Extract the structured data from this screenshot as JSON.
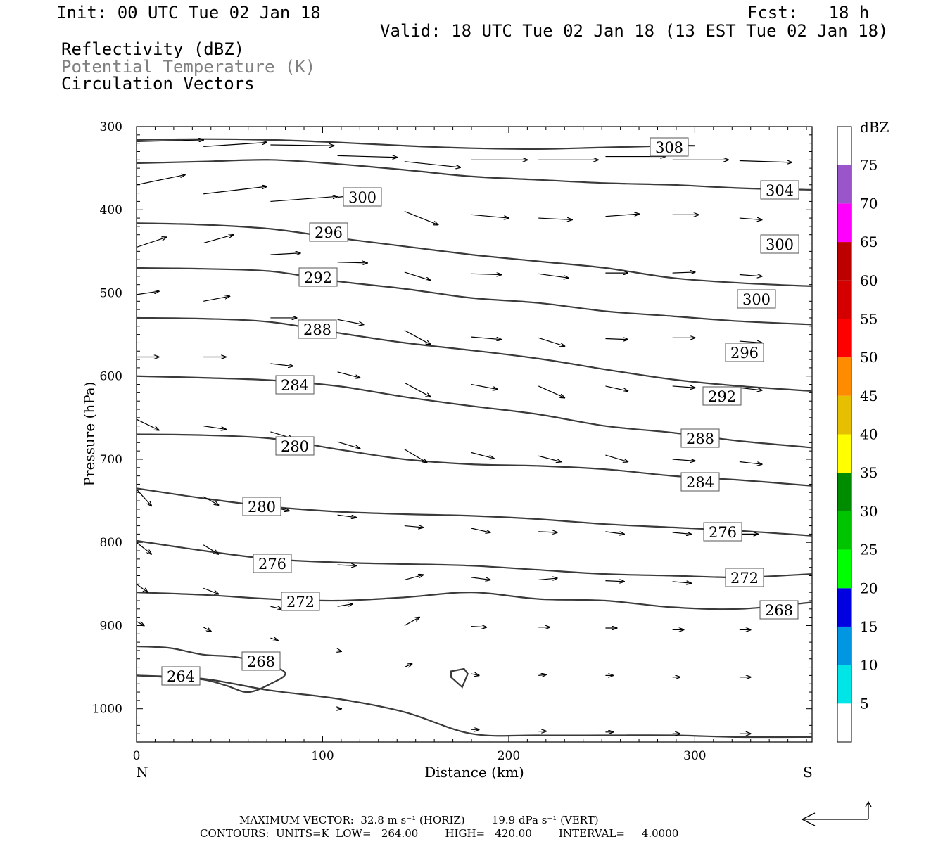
{
  "header": {
    "init": "Init: 00 UTC Tue 02 Jan 18",
    "fcst": "Fcst:   18 h",
    "valid": "Valid: 18 UTC Tue 02 Jan 18 (13 EST Tue 02 Jan 18)",
    "field1": "Reflectivity (dBZ)",
    "field2": "Potential Temperature (K)",
    "field3": "Circulation Vectors"
  },
  "footer": {
    "line1": "MAXIMUM VECTOR:  32.8 m s⁻¹ (HORIZ)        19.9 dPa s⁻¹ (VERT)",
    "line2": "CONTOURS:  UNITS=K  LOW=   264.00        HIGH=   420.00        INTERVAL=     4.0000"
  },
  "colors": {
    "contour": "#3a3a3a",
    "gray_text": "#808080"
  },
  "chart_data": {
    "type": "contour",
    "xlabel": "Distance (km)",
    "ylabel": "Pressure (hPa)",
    "xlim": [
      0,
      363
    ],
    "ylim": [
      300,
      1040
    ],
    "x_ticks": [
      0,
      100,
      200,
      300
    ],
    "y_ticks": [
      300,
      400,
      500,
      600,
      700,
      800,
      900,
      1000
    ],
    "x_end_labels": {
      "left": "N",
      "right": "S"
    },
    "colorbar": {
      "title": "dBZ",
      "labels": [
        "5",
        "10",
        "15",
        "20",
        "25",
        "30",
        "35",
        "40",
        "45",
        "50",
        "55",
        "60",
        "65",
        "70",
        "75"
      ],
      "colors": [
        "#ffffff",
        "#00e5e5",
        "#0096e1",
        "#0000e0",
        "#00ff00",
        "#00c400",
        "#008c00",
        "#ffff00",
        "#e6c000",
        "#ff8c00",
        "#ff0000",
        "#d40000",
        "#bc0000",
        "#ff00ff",
        "#9955c9",
        "#ffffff"
      ]
    },
    "contour_label_values": [
      "308",
      "304",
      "300",
      "300",
      "296",
      "300",
      "292",
      "296",
      "288",
      "292",
      "284",
      "288",
      "280",
      "284",
      "280",
      "276",
      "276",
      "272",
      "272",
      "268",
      "268",
      "264",
      "264"
    ],
    "isentropes": [
      {
        "theta": 308,
        "points": [
          [
            0,
            316
          ],
          [
            36,
            315
          ],
          [
            72,
            316
          ],
          [
            108,
            319
          ],
          [
            144,
            323
          ],
          [
            180,
            326
          ],
          [
            216,
            327
          ],
          [
            252,
            325
          ],
          [
            288,
            323
          ],
          [
            300,
            323
          ]
        ]
      },
      {
        "theta": 304,
        "points": [
          [
            0,
            344
          ],
          [
            36,
            342
          ],
          [
            72,
            340
          ],
          [
            108,
            345
          ],
          [
            144,
            352
          ],
          [
            180,
            360
          ],
          [
            216,
            364
          ],
          [
            252,
            368
          ],
          [
            288,
            370
          ],
          [
            324,
            374
          ],
          [
            363,
            376
          ]
        ]
      },
      {
        "theta": 300,
        "points": [
          [
            0,
            416
          ],
          [
            36,
            418
          ],
          [
            72,
            423
          ],
          [
            108,
            434
          ],
          [
            144,
            444
          ],
          [
            180,
            454
          ],
          [
            216,
            462
          ],
          [
            252,
            470
          ],
          [
            288,
            482
          ],
          [
            324,
            488
          ],
          [
            363,
            492
          ]
        ]
      },
      {
        "theta": 296,
        "points": [
          [
            0,
            470
          ],
          [
            36,
            471
          ],
          [
            72,
            474
          ],
          [
            108,
            486
          ],
          [
            144,
            495
          ],
          [
            180,
            506
          ],
          [
            216,
            512
          ],
          [
            252,
            522
          ],
          [
            288,
            528
          ],
          [
            324,
            534
          ],
          [
            363,
            538
          ]
        ]
      },
      {
        "theta": 292,
        "points": [
          [
            0,
            530
          ],
          [
            36,
            531
          ],
          [
            72,
            535
          ],
          [
            108,
            548
          ],
          [
            144,
            560
          ],
          [
            180,
            569
          ],
          [
            216,
            579
          ],
          [
            252,
            592
          ],
          [
            288,
            604
          ],
          [
            324,
            612
          ],
          [
            363,
            618
          ]
        ]
      },
      {
        "theta": 288,
        "points": [
          [
            0,
            600
          ],
          [
            36,
            602
          ],
          [
            72,
            605
          ],
          [
            108,
            612
          ],
          [
            144,
            625
          ],
          [
            180,
            636
          ],
          [
            216,
            646
          ],
          [
            252,
            660
          ],
          [
            288,
            668
          ],
          [
            324,
            678
          ],
          [
            363,
            686
          ]
        ]
      },
      {
        "theta": 284,
        "points": [
          [
            0,
            670
          ],
          [
            36,
            671
          ],
          [
            72,
            675
          ],
          [
            108,
            688
          ],
          [
            144,
            700
          ],
          [
            180,
            706
          ],
          [
            216,
            708
          ],
          [
            252,
            712
          ],
          [
            288,
            720
          ],
          [
            324,
            725
          ],
          [
            363,
            732
          ]
        ]
      },
      {
        "theta": 280,
        "points": [
          [
            0,
            735
          ],
          [
            36,
            747
          ],
          [
            72,
            757
          ],
          [
            108,
            763
          ],
          [
            144,
            766
          ],
          [
            180,
            768
          ],
          [
            216,
            772
          ],
          [
            252,
            778
          ],
          [
            288,
            782
          ],
          [
            324,
            786
          ],
          [
            363,
            792
          ]
        ]
      },
      {
        "theta": 276,
        "points": [
          [
            0,
            798
          ],
          [
            36,
            810
          ],
          [
            72,
            820
          ],
          [
            108,
            824
          ],
          [
            144,
            826
          ],
          [
            180,
            828
          ],
          [
            216,
            833
          ],
          [
            252,
            838
          ],
          [
            288,
            840
          ],
          [
            324,
            842
          ],
          [
            363,
            838
          ]
        ]
      },
      {
        "theta": 272,
        "points": [
          [
            0,
            860
          ],
          [
            36,
            863
          ],
          [
            72,
            868
          ],
          [
            108,
            870
          ],
          [
            144,
            866
          ],
          [
            180,
            860
          ],
          [
            216,
            868
          ],
          [
            252,
            870
          ],
          [
            288,
            878
          ],
          [
            324,
            880
          ],
          [
            363,
            872
          ]
        ]
      },
      {
        "theta": 268,
        "points": [
          [
            0,
            925
          ],
          [
            18,
            927
          ],
          [
            36,
            935
          ],
          [
            54,
            938
          ],
          [
            72,
            948
          ],
          [
            80,
            958
          ],
          [
            72,
            970
          ],
          [
            60,
            980
          ],
          [
            48,
            972
          ],
          [
            36,
            965
          ],
          [
            18,
            962
          ],
          [
            0,
            960
          ]
        ]
      },
      {
        "theta": 264,
        "points": [
          [
            0,
            960
          ],
          [
            36,
            964
          ],
          [
            72,
            978
          ],
          [
            108,
            988
          ],
          [
            144,
            1004
          ],
          [
            180,
            1030
          ],
          [
            216,
            1032
          ],
          [
            252,
            1032
          ],
          [
            288,
            1032
          ],
          [
            324,
            1034
          ],
          [
            363,
            1034
          ]
        ]
      }
    ],
    "circulation_vectors": [
      [
        0,
        318,
        36,
        316
      ],
      [
        36,
        324,
        70,
        319
      ],
      [
        72,
        322,
        106,
        323
      ],
      [
        108,
        335,
        140,
        337
      ],
      [
        144,
        342,
        174,
        349
      ],
      [
        180,
        340,
        210,
        340
      ],
      [
        216,
        340,
        248,
        340
      ],
      [
        252,
        336,
        284,
        336
      ],
      [
        288,
        340,
        318,
        340
      ],
      [
        324,
        341,
        352,
        343
      ],
      [
        0,
        370,
        26,
        358
      ],
      [
        36,
        381,
        70,
        372
      ],
      [
        72,
        390,
        108,
        384
      ],
      [
        108,
        385,
        128,
        380
      ],
      [
        144,
        402,
        162,
        418
      ],
      [
        180,
        406,
        200,
        410
      ],
      [
        216,
        410,
        234,
        412
      ],
      [
        252,
        408,
        270,
        405
      ],
      [
        288,
        406,
        302,
        406
      ],
      [
        324,
        410,
        336,
        412
      ],
      [
        0,
        445,
        16,
        433
      ],
      [
        36,
        440,
        52,
        430
      ],
      [
        72,
        454,
        88,
        452
      ],
      [
        108,
        463,
        124,
        464
      ],
      [
        144,
        475,
        158,
        485
      ],
      [
        180,
        477,
        196,
        478
      ],
      [
        216,
        477,
        232,
        482
      ],
      [
        252,
        476,
        264,
        476
      ],
      [
        288,
        476,
        300,
        475
      ],
      [
        324,
        478,
        336,
        480
      ],
      [
        0,
        502,
        12,
        498
      ],
      [
        36,
        510,
        50,
        504
      ],
      [
        72,
        530,
        86,
        530
      ],
      [
        108,
        532,
        122,
        538
      ],
      [
        144,
        545,
        158,
        562
      ],
      [
        180,
        553,
        196,
        556
      ],
      [
        216,
        554,
        230,
        564
      ],
      [
        252,
        555,
        264,
        556
      ],
      [
        288,
        554,
        300,
        554
      ],
      [
        324,
        558,
        336,
        560
      ],
      [
        0,
        577,
        12,
        577
      ],
      [
        36,
        577,
        48,
        577
      ],
      [
        72,
        585,
        84,
        588
      ],
      [
        108,
        595,
        120,
        602
      ],
      [
        144,
        608,
        158,
        625
      ],
      [
        180,
        610,
        194,
        616
      ],
      [
        216,
        612,
        230,
        626
      ],
      [
        252,
        612,
        264,
        618
      ],
      [
        288,
        612,
        300,
        614
      ],
      [
        324,
        614,
        336,
        617
      ],
      [
        0,
        652,
        12,
        665
      ],
      [
        36,
        660,
        48,
        664
      ],
      [
        72,
        667,
        84,
        675
      ],
      [
        108,
        679,
        120,
        687
      ],
      [
        144,
        688,
        156,
        704
      ],
      [
        180,
        692,
        192,
        699
      ],
      [
        216,
        696,
        228,
        703
      ],
      [
        252,
        695,
        264,
        703
      ],
      [
        288,
        700,
        300,
        702
      ],
      [
        324,
        703,
        336,
        706
      ],
      [
        0,
        736,
        8,
        756
      ],
      [
        36,
        745,
        44,
        755
      ],
      [
        72,
        757,
        82,
        762
      ],
      [
        108,
        767,
        118,
        770
      ],
      [
        144,
        780,
        154,
        782
      ],
      [
        180,
        783,
        190,
        788
      ],
      [
        216,
        787,
        226,
        788
      ],
      [
        252,
        787,
        262,
        790
      ],
      [
        288,
        788,
        298,
        790
      ],
      [
        324,
        790,
        334,
        790
      ],
      [
        0,
        800,
        8,
        814
      ],
      [
        36,
        803,
        44,
        814
      ],
      [
        72,
        822,
        80,
        828
      ],
      [
        108,
        827,
        118,
        828
      ],
      [
        144,
        845,
        154,
        839
      ],
      [
        180,
        842,
        190,
        845
      ],
      [
        216,
        845,
        226,
        843
      ],
      [
        252,
        846,
        262,
        847
      ],
      [
        288,
        847,
        298,
        849
      ],
      [
        324,
        847,
        334,
        848
      ],
      [
        0,
        850,
        6,
        860
      ],
      [
        36,
        855,
        44,
        862
      ],
      [
        72,
        877,
        78,
        880
      ],
      [
        108,
        877,
        116,
        874
      ],
      [
        144,
        900,
        152,
        890
      ],
      [
        180,
        901,
        188,
        902
      ],
      [
        216,
        902,
        222,
        902
      ],
      [
        252,
        903,
        258,
        903
      ],
      [
        288,
        905,
        294,
        905
      ],
      [
        324,
        905,
        330,
        905
      ],
      [
        0,
        895,
        4,
        900
      ],
      [
        36,
        902,
        40,
        907
      ],
      [
        72,
        915,
        76,
        918
      ],
      [
        108,
        930,
        110,
        931
      ],
      [
        144,
        950,
        148,
        946
      ],
      [
        180,
        958,
        184,
        960
      ],
      [
        216,
        960,
        220,
        959
      ],
      [
        252,
        960,
        256,
        960
      ],
      [
        288,
        962,
        292,
        962
      ],
      [
        324,
        962,
        330,
        962
      ],
      [
        108,
        1000,
        110,
        1000
      ],
      [
        180,
        1025,
        184,
        1025
      ],
      [
        216,
        1027,
        220,
        1027
      ],
      [
        252,
        1028,
        256,
        1028
      ],
      [
        288,
        1030,
        292,
        1030
      ],
      [
        324,
        1030,
        330,
        1030
      ]
    ]
  }
}
